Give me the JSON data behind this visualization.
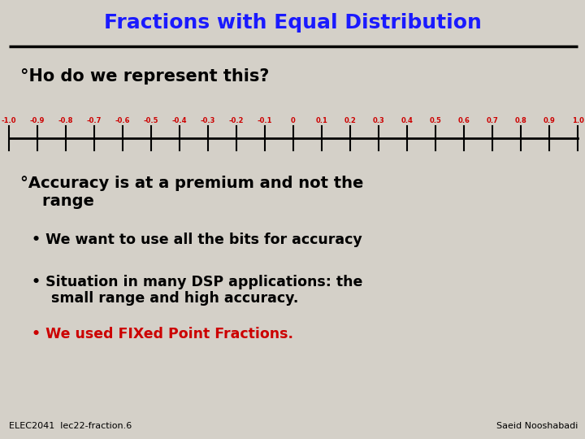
{
  "title": "Fractions with Equal Distribution",
  "title_color": "#1a1aff",
  "background_color": "#d4d0c8",
  "bullet1_text": "°Ho do we represent this?",
  "number_line_ticks": [
    -1.0,
    -0.9,
    -0.8,
    -0.7,
    -0.6,
    -0.5,
    -0.4,
    -0.3,
    -0.2,
    -0.1,
    0,
    0.1,
    0.2,
    0.3,
    0.4,
    0.5,
    0.6,
    0.7,
    0.8,
    0.9,
    1.0
  ],
  "number_line_labels": [
    "-1.0",
    "-0.9",
    "-0.8",
    "-0.7",
    "-0.6",
    "-0.5",
    "-0.4",
    "-0.3",
    "-0.2",
    "-0.1",
    "0",
    "0.1",
    "0.2",
    "0.3",
    "0.4",
    "0.5",
    "0.6",
    "0.7",
    "0.8",
    "0.9",
    "1.0"
  ],
  "tick_color": "#cc0000",
  "bullet2_text": "°Accuracy is at a premium and not the\n    range",
  "sub1_text": "• We want to use all the bits for accuracy",
  "sub2_text": "• Situation in many DSP applications: the\n    small range and high accuracy.",
  "sub3_text": "• We used FIXed Point Fractions.",
  "sub3_color": "#cc0000",
  "footer_left": "ELEC2041  lec22-fraction.6",
  "footer_right": "Saeid Nooshabadi"
}
